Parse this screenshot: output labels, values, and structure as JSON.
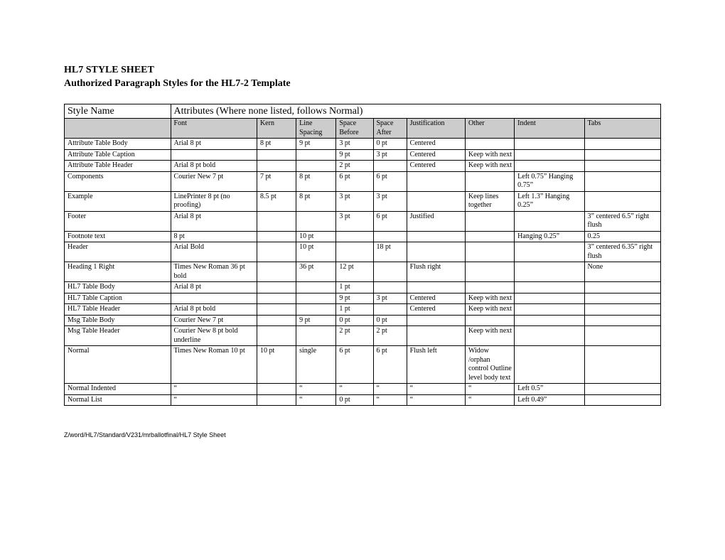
{
  "title": {
    "line1": "HL7 STYLE SHEET",
    "line2": "Authorized Paragraph Styles for the HL7-2 Template"
  },
  "table": {
    "header": {
      "style_name": "Style Name",
      "attributes": "Attributes (Where none listed, follows Normal)"
    },
    "subheader": {
      "style_name": "",
      "font": "Font",
      "kern": "Kern",
      "line_spacing": "Line Spacing",
      "space_before": "Space Before",
      "space_after": "Space After",
      "justification": "Justification",
      "other": "Other",
      "indent": "Indent",
      "tabs": "Tabs"
    },
    "rows": [
      {
        "name": "Attribute Table Body",
        "font": "Arial 8 pt",
        "kern": "8 pt",
        "line": "9 pt",
        "before": "3 pt",
        "after": "0 pt",
        "just": "Centered",
        "other": "",
        "indent": "",
        "tabs": ""
      },
      {
        "name": "Attribute Table Caption",
        "font": "",
        "kern": "",
        "line": "",
        "before": "9 pt",
        "after": "3 pt",
        "just": "Centered",
        "other": "Keep with next",
        "indent": "",
        "tabs": ""
      },
      {
        "name": "Attribute Table Header",
        "font": "Arial 8 pt bold",
        "kern": "",
        "line": "",
        "before": "2 pt",
        "after": "",
        "just": "Centered",
        "other": "Keep with next",
        "indent": "",
        "tabs": ""
      },
      {
        "name": "Components",
        "font": "Courier New 7 pt",
        "kern": "7 pt",
        "line": "8 pt",
        "before": "6 pt",
        "after": "6 pt",
        "just": "",
        "other": "",
        "indent": "Left 0.75” Hanging 0.75”",
        "tabs": ""
      },
      {
        "name": "Example",
        "font": "LinePrinter 8 pt (no proofing)",
        "kern": "8.5 pt",
        "line": "8 pt",
        "before": "3 pt",
        "after": "3 pt",
        "just": "",
        "other": "Keep lines together",
        "indent": "Left 1.3” Hanging 0.25”",
        "tabs": ""
      },
      {
        "name": "Footer",
        "font": "Arial 8 pt",
        "kern": "",
        "line": "",
        "before": "3 pt",
        "after": "6 pt",
        "just": "Justified",
        "other": "",
        "indent": "",
        "tabs": "3” centered 6.5” right flush"
      },
      {
        "name": "Footnote text",
        "font": "8 pt",
        "kern": "",
        "line": "10 pt",
        "before": "",
        "after": "",
        "just": "",
        "other": "",
        "indent": "Hanging 0.25”",
        "tabs": "0.25"
      },
      {
        "name": "Header",
        "font": "Arial Bold",
        "kern": "",
        "line": "10 pt",
        "before": "",
        "after": "18 pt",
        "just": "",
        "other": "",
        "indent": "",
        "tabs": "3” centered 6.35” right flush"
      },
      {
        "name": "Heading 1 Right",
        "font": "Times New Roman 36 pt bold",
        "kern": "",
        "line": "36 pt",
        "before": "12 pt",
        "after": "",
        "just": "Flush right",
        "other": "",
        "indent": "",
        "tabs": "None"
      },
      {
        "name": "HL7 Table Body",
        "font": "Arial 8 pt",
        "kern": "",
        "line": "",
        "before": "1 pt",
        "after": "",
        "just": "",
        "other": "",
        "indent": "",
        "tabs": ""
      },
      {
        "name": "HL7 Table Caption",
        "font": "",
        "kern": "",
        "line": "",
        "before": "9 pt",
        "after": "3 pt",
        "just": "Centered",
        "other": "Keep with next",
        "indent": "",
        "tabs": ""
      },
      {
        "name": "HL7 Table Header",
        "font": "Arial 8 pt bold",
        "kern": "",
        "line": "",
        "before": "1 pt",
        "after": "",
        "just": "Centered",
        "other": "Keep with next",
        "indent": "",
        "tabs": ""
      },
      {
        "name": "Msg Table Body",
        "font": "Courier New 7 pt",
        "kern": "",
        "line": "9 pt",
        "before": "0 pt",
        "after": "0 pt",
        "just": "",
        "other": "",
        "indent": "",
        "tabs": ""
      },
      {
        "name": "Msg Table Header",
        "font": "Courier New 8 pt bold underline",
        "kern": "",
        "line": "",
        "before": "2 pt",
        "after": "2 pt",
        "just": "",
        "other": "Keep with next",
        "indent": "",
        "tabs": ""
      },
      {
        "name": "Normal",
        "font": "Times New Roman 10 pt",
        "kern": "10 pt",
        "line": "single",
        "before": "6 pt",
        "after": "6 pt",
        "just": "Flush left",
        "other": "Widow /orphan control Outline level body text",
        "indent": "",
        "tabs": ""
      },
      {
        "name": "Normal Indented",
        "font": "“",
        "kern": "",
        "line": "“",
        "before": "“",
        "after": "“",
        "just": "“",
        "other": "“",
        "indent": "Left 0.5”",
        "tabs": ""
      },
      {
        "name": "Normal List",
        "font": "“",
        "kern": "",
        "line": "“",
        "before": "0 pt",
        "after": "“",
        "just": "“",
        "other": "“",
        "indent": "Left 0.49”",
        "tabs": ""
      }
    ]
  },
  "footer_path": "Z/word/HL7/Standard/V231/mrballotfinal/HL7 Style Sheet",
  "colors": {
    "header_row_bg": "#ffffff",
    "subheader_bg": "#cccccc",
    "cell_bg": "#ffffff",
    "border": "#000000",
    "text": "#000000"
  },
  "fonts": {
    "body": "Times New Roman",
    "footer": "Arial",
    "title_size_pt": 11,
    "header_row_size_pt": 11,
    "subheader_size_pt": 8,
    "cell_size_pt": 8,
    "footer_size_pt": 7
  }
}
